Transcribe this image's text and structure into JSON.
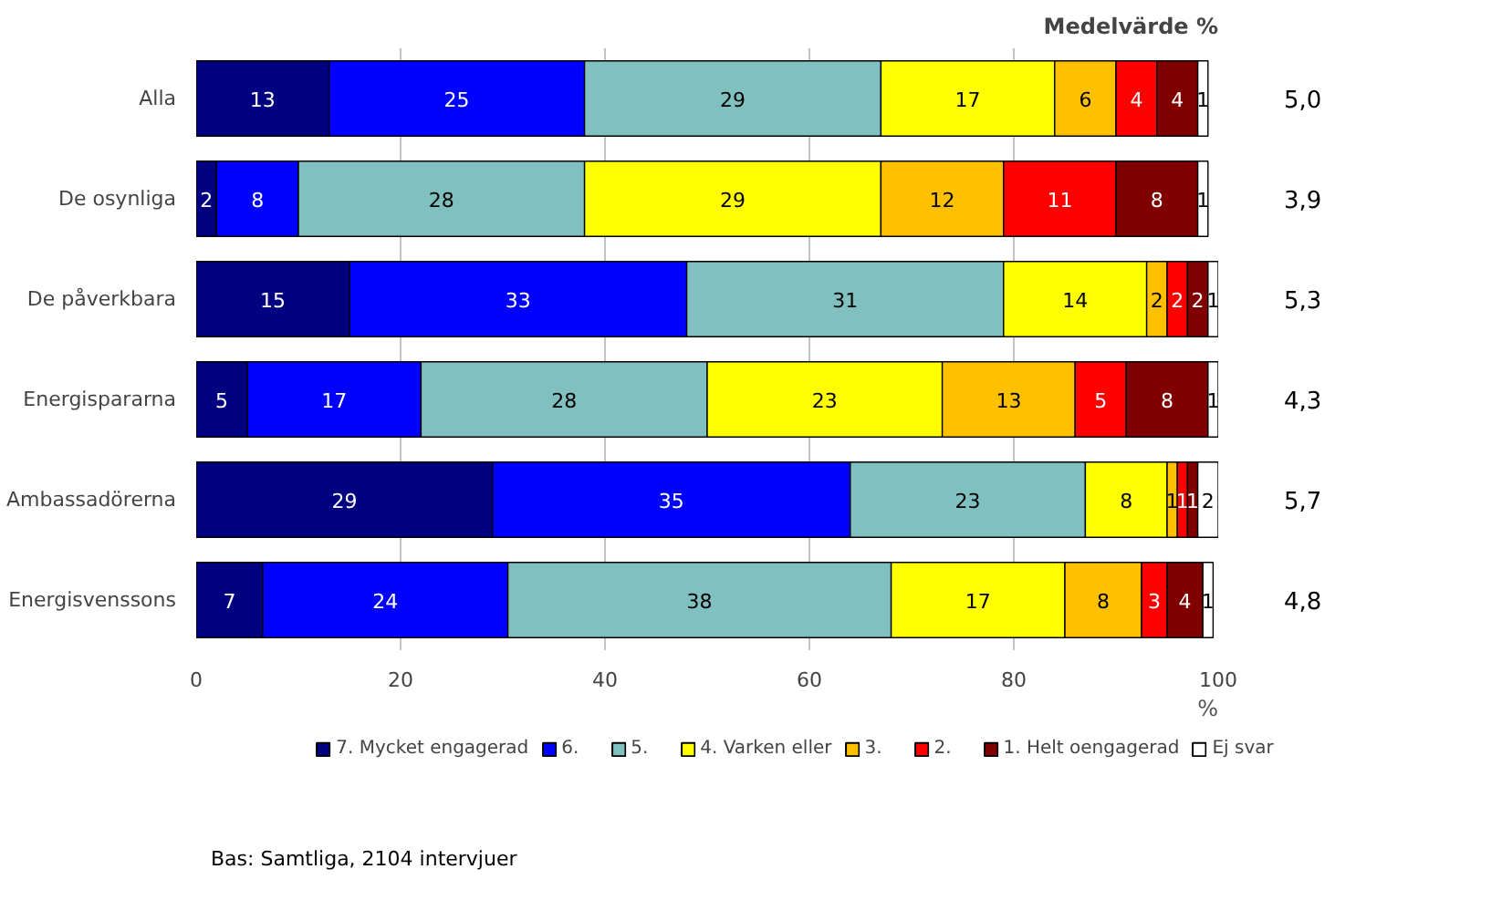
{
  "chart_data": {
    "type": "bar",
    "orientation": "horizontal",
    "stacked": true,
    "grid": "x",
    "legend": "bottom",
    "xlabel": "%",
    "categories": [
      "Alla",
      "De osynliga",
      "De påverkbara",
      "Energispararna",
      "Ambassadörerna",
      "Energisvenssons"
    ],
    "xlim": [
      0,
      100
    ],
    "xticks": [
      0,
      20,
      40,
      60,
      80,
      100
    ],
    "series": [
      {
        "name": "7. Mycket engagerad",
        "color": "#000080",
        "values": [
          13,
          2,
          15,
          5,
          29,
          6.5
        ],
        "value_labels": [
          "13",
          "2",
          "15",
          "5",
          "29",
          "7"
        ]
      },
      {
        "name": "6.",
        "color": "#0000ff",
        "values": [
          25,
          8,
          33,
          17,
          35,
          24
        ],
        "value_labels": [
          "25",
          "8",
          "33",
          "17",
          "35",
          "24"
        ]
      },
      {
        "name": "5.",
        "color": "#80c0c0",
        "values": [
          29,
          28,
          31,
          28,
          23,
          37.5
        ],
        "value_labels": [
          "29",
          "28",
          "31",
          "28",
          "23",
          "38"
        ]
      },
      {
        "name": "4. Varken eller",
        "color": "#ffff00",
        "values": [
          17,
          29,
          14,
          23,
          8,
          17
        ],
        "value_labels": [
          "17",
          "29",
          "14",
          "23",
          "8",
          "17"
        ]
      },
      {
        "name": "3.",
        "color": "#ffc000",
        "values": [
          6,
          12,
          2,
          13,
          1,
          7.5
        ],
        "value_labels": [
          "6",
          "12",
          "2",
          "13",
          "1",
          "8"
        ]
      },
      {
        "name": "2.",
        "color": "#ff0000",
        "values": [
          4,
          11,
          2,
          5,
          1,
          2.5
        ],
        "value_labels": [
          "4",
          "11",
          "2",
          "5",
          "1",
          "3"
        ]
      },
      {
        "name": "1. Helt oengagerad",
        "color": "#800000",
        "values": [
          4,
          8,
          2,
          8,
          1,
          3.5
        ],
        "value_labels": [
          "4",
          "8",
          "2",
          "8",
          "1",
          "4"
        ]
      },
      {
        "name": "Ej svar",
        "color": "#ffffff",
        "values": [
          1,
          1,
          1,
          1,
          2,
          1
        ],
        "value_labels": [
          "1",
          "1",
          "1",
          "1",
          "2",
          "1"
        ]
      }
    ],
    "annotations": [
      "Medelvärde %",
      "5,0",
      "3,9",
      "5,3",
      "4,3",
      "5,7",
      "4,8",
      "Bas: Samtliga, 2104 intervjuer"
    ]
  }
}
